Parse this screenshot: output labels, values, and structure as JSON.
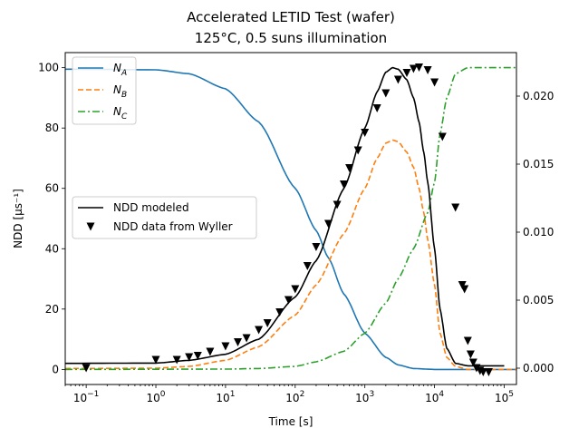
{
  "chart_data": {
    "type": "line",
    "title_line1": "Accelerated LETID Test (wafer)",
    "title_line2": "125°C, 0.5 suns illumination",
    "xlabel": "Time [s]",
    "ylabel": "NDD [μs⁻¹]",
    "xscale": "log",
    "xlim": [
      0.05,
      150000
    ],
    "ylim": [
      -5,
      105
    ],
    "y2lim": [
      -0.0012,
      0.0232
    ],
    "x_ticks": [
      {
        "value": 0.1,
        "base": "10",
        "exp": "−1"
      },
      {
        "value": 1,
        "base": "10",
        "exp": "0"
      },
      {
        "value": 10,
        "base": "10",
        "exp": "1"
      },
      {
        "value": 100,
        "base": "10",
        "exp": "2"
      },
      {
        "value": 1000,
        "base": "10",
        "exp": "3"
      },
      {
        "value": 10000,
        "base": "10",
        "exp": "4"
      },
      {
        "value": 100000,
        "base": "10",
        "exp": "5"
      }
    ],
    "y_ticks": [
      "0",
      "20",
      "40",
      "60",
      "80",
      "100"
    ],
    "y2_ticks": [
      "0.000",
      "0.005",
      "0.010",
      "0.015",
      "0.020"
    ],
    "series_state": [
      {
        "name": "N_A",
        "sub": "A",
        "color": "#1f77b4",
        "dash": "solid",
        "axis": "left",
        "x": [
          0.05,
          1,
          3,
          10,
          30,
          100,
          200,
          300,
          500,
          1000,
          2000,
          3000,
          5000,
          10000,
          150000
        ],
        "y": [
          99.5,
          99.3,
          98,
          93,
          82,
          60,
          46,
          37,
          25,
          12,
          4,
          1.5,
          0.3,
          0,
          0
        ]
      },
      {
        "name": "N_B",
        "sub": "B",
        "color": "#ff7f0e",
        "dash": "dashed",
        "axis": "left",
        "x": [
          0.05,
          1,
          3,
          10,
          30,
          100,
          200,
          500,
          1000,
          1500,
          2000,
          2500,
          3000,
          4000,
          5000,
          6000,
          7000,
          8000,
          10000,
          12000,
          15000,
          20000,
          30000,
          150000
        ],
        "y": [
          0.3,
          0.4,
          1,
          3,
          7.5,
          18,
          28,
          45,
          60,
          70,
          75,
          76,
          75.5,
          72,
          67,
          60,
          52,
          43,
          28,
          12,
          4,
          1,
          0,
          0
        ]
      },
      {
        "name": "N_C",
        "sub": "C",
        "color": "#2ca02c",
        "dash": "dashdot",
        "axis": "left",
        "x": [
          0.05,
          10,
          30,
          100,
          200,
          500,
          1000,
          2000,
          3000,
          5000,
          8000,
          10000,
          12000,
          15000,
          20000,
          30000,
          150000
        ],
        "y": [
          0,
          0.1,
          0.3,
          1,
          2.5,
          6,
          12,
          22,
          30,
          40,
          52,
          62,
          78,
          90,
          98,
          100,
          100
        ]
      },
      {
        "name": "NDD modeled",
        "color": "#000000",
        "dash": "solid",
        "axis": "left",
        "x": [
          0.05,
          1,
          3,
          10,
          30,
          100,
          200,
          500,
          1000,
          1500,
          2000,
          2500,
          3000,
          4000,
          5000,
          6000,
          7000,
          8000,
          10000,
          12000,
          15000,
          20000,
          30000,
          100000
        ],
        "y": [
          2,
          2.1,
          3,
          5,
          10,
          24,
          36,
          60,
          80,
          92,
          98.5,
          100,
          99.5,
          96,
          90,
          82,
          72,
          62,
          40,
          20,
          7,
          2,
          1.2,
          1.2
        ]
      }
    ],
    "scatter": {
      "name": "NDD data from Wyller",
      "axis": "right",
      "color": "#000000",
      "x": [
        0.1,
        1,
        2,
        3,
        4,
        6,
        10,
        15,
        20,
        30,
        40,
        60,
        80,
        100,
        150,
        200,
        300,
        400,
        500,
        600,
        800,
        1000,
        1500,
        2000,
        3000,
        4000,
        5000,
        6000,
        8000,
        10000,
        13000,
        20000,
        25000,
        27000,
        30000,
        33000,
        36000,
        40000,
        45000,
        50000,
        60000
      ],
      "y": [
        0.0,
        0.0006,
        0.0006,
        0.0008,
        0.0009,
        0.0012,
        0.0016,
        0.0019,
        0.0022,
        0.0028,
        0.0033,
        0.0041,
        0.005,
        0.0058,
        0.0075,
        0.0089,
        0.0106,
        0.012,
        0.0135,
        0.0147,
        0.016,
        0.0173,
        0.0191,
        0.0202,
        0.0212,
        0.0217,
        0.022,
        0.0221,
        0.0219,
        0.021,
        0.017,
        0.0118,
        0.0061,
        0.0058,
        0.002,
        0.001,
        0.0004,
        0.0,
        -0.0002,
        -0.0003,
        -0.0003
      ]
    },
    "legend1": [
      {
        "label": "N",
        "sub": "A"
      },
      {
        "label": "N",
        "sub": "B"
      },
      {
        "label": "N",
        "sub": "C"
      }
    ],
    "legend2": [
      {
        "label": "NDD modeled"
      },
      {
        "label": "NDD data from Wyller"
      }
    ]
  }
}
